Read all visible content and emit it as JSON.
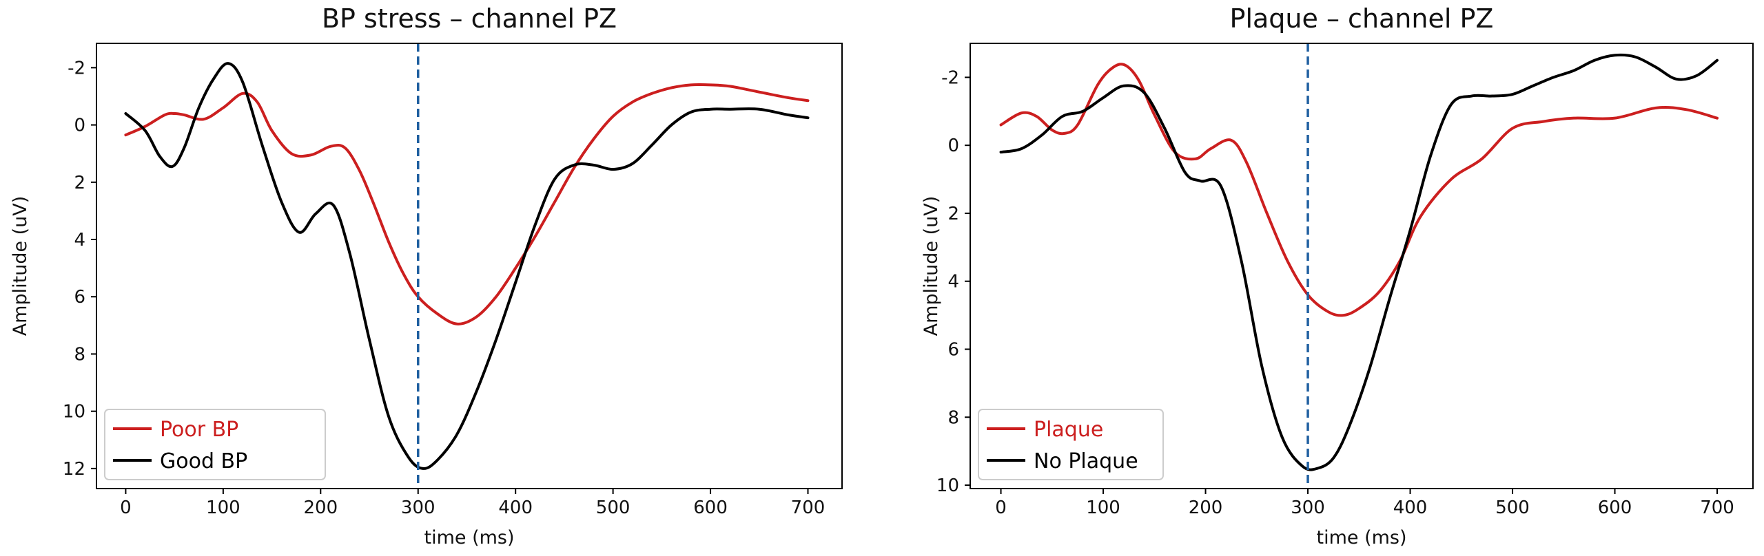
{
  "colors": {
    "red": "#cc1f1f",
    "black": "#000000",
    "marker": "#1f5fa0"
  },
  "chart_data": [
    {
      "type": "line",
      "title": "BP stress – channel PZ",
      "xlabel": "time (ms)",
      "ylabel": "Amplitude (uV)",
      "xlim": [
        -30,
        735
      ],
      "ylim": [
        12.7,
        -2.85
      ],
      "y_inverted": true,
      "xticks": [
        0,
        100,
        200,
        300,
        400,
        500,
        600,
        700
      ],
      "xtick_labels": [
        "0",
        "100",
        "200",
        "300",
        "400",
        "500",
        "600",
        "700"
      ],
      "yticks": [
        -2,
        0,
        2,
        4,
        6,
        8,
        10,
        12
      ],
      "ytick_labels": [
        "-2",
        "0",
        "2",
        "4",
        "6",
        "8",
        "10",
        "12"
      ],
      "vline_x": 300,
      "legend_position": "lower-left",
      "series": [
        {
          "name": "Poor BP",
          "color": "#cc1f1f",
          "x": [
            0,
            20,
            40,
            50,
            60,
            80,
            100,
            120,
            135,
            150,
            170,
            190,
            210,
            225,
            240,
            255,
            270,
            285,
            300,
            320,
            340,
            360,
            380,
            400,
            420,
            440,
            460,
            480,
            500,
            520,
            540,
            560,
            580,
            600,
            620,
            650,
            680,
            700
          ],
          "values": [
            0.35,
            0.05,
            -0.35,
            -0.4,
            -0.35,
            -0.2,
            -0.6,
            -1.1,
            -0.8,
            0.2,
            1.0,
            1.05,
            0.75,
            0.8,
            1.6,
            2.8,
            4.1,
            5.2,
            6.0,
            6.6,
            6.95,
            6.7,
            6.0,
            5.0,
            3.9,
            2.7,
            1.5,
            0.5,
            -0.3,
            -0.8,
            -1.1,
            -1.3,
            -1.4,
            -1.4,
            -1.35,
            -1.15,
            -0.95,
            -0.85
          ]
        },
        {
          "name": "Good BP",
          "color": "#000000",
          "x": [
            0,
            20,
            35,
            48,
            60,
            75,
            90,
            105,
            120,
            140,
            160,
            178,
            195,
            213,
            230,
            250,
            270,
            290,
            305,
            320,
            340,
            360,
            380,
            400,
            420,
            440,
            460,
            480,
            500,
            520,
            540,
            560,
            580,
            600,
            620,
            650,
            680,
            700
          ],
          "values": [
            -0.4,
            0.2,
            1.1,
            1.45,
            0.8,
            -0.6,
            -1.6,
            -2.15,
            -1.5,
            0.7,
            2.7,
            3.75,
            3.1,
            2.8,
            4.5,
            7.5,
            10.2,
            11.6,
            12.0,
            11.7,
            10.8,
            9.3,
            7.5,
            5.5,
            3.5,
            1.9,
            1.4,
            1.4,
            1.55,
            1.35,
            0.7,
            0.0,
            -0.45,
            -0.55,
            -0.55,
            -0.55,
            -0.35,
            -0.25
          ]
        }
      ]
    },
    {
      "type": "line",
      "title": "Plaque – channel PZ",
      "xlabel": "time (ms)",
      "ylabel": "Amplitude (uV)",
      "xlim": [
        -30,
        735
      ],
      "ylim": [
        10.1,
        -3.0
      ],
      "y_inverted": true,
      "xticks": [
        0,
        100,
        200,
        300,
        400,
        500,
        600,
        700
      ],
      "xtick_labels": [
        "0",
        "100",
        "200",
        "300",
        "400",
        "500",
        "600",
        "700"
      ],
      "yticks": [
        -2,
        0,
        2,
        4,
        6,
        8,
        10
      ],
      "ytick_labels": [
        "-2",
        "0",
        "2",
        "4",
        "6",
        "8",
        "10"
      ],
      "vline_x": 300,
      "legend_position": "lower-left",
      "series": [
        {
          "name": "Plaque",
          "color": "#cc1f1f",
          "x": [
            0,
            20,
            35,
            50,
            62,
            75,
            95,
            110,
            122,
            135,
            150,
            170,
            190,
            205,
            225,
            240,
            260,
            280,
            300,
            320,
            335,
            350,
            370,
            390,
            410,
            440,
            470,
            500,
            530,
            560,
            600,
            640,
            670,
            700
          ],
          "values": [
            -0.6,
            -0.95,
            -0.85,
            -0.45,
            -0.35,
            -0.6,
            -1.8,
            -2.3,
            -2.35,
            -1.9,
            -0.9,
            0.2,
            0.4,
            0.1,
            -0.15,
            0.5,
            2.0,
            3.4,
            4.4,
            4.9,
            5.0,
            4.8,
            4.3,
            3.4,
            2.1,
            1.0,
            0.4,
            -0.5,
            -0.7,
            -0.8,
            -0.8,
            -1.1,
            -1.05,
            -0.8
          ]
        },
        {
          "name": "No Plaque",
          "color": "#000000",
          "x": [
            0,
            20,
            40,
            60,
            80,
            100,
            120,
            140,
            160,
            180,
            195,
            215,
            235,
            255,
            275,
            295,
            310,
            325,
            340,
            360,
            380,
            400,
            420,
            440,
            460,
            480,
            500,
            520,
            540,
            560,
            580,
            600,
            620,
            640,
            660,
            680,
            700
          ],
          "values": [
            0.2,
            0.1,
            -0.3,
            -0.85,
            -1.0,
            -1.4,
            -1.75,
            -1.55,
            -0.5,
            0.8,
            1.05,
            1.2,
            3.4,
            6.5,
            8.6,
            9.45,
            9.5,
            9.2,
            8.3,
            6.6,
            4.5,
            2.5,
            0.3,
            -1.2,
            -1.45,
            -1.45,
            -1.5,
            -1.75,
            -2.0,
            -2.2,
            -2.5,
            -2.65,
            -2.6,
            -2.3,
            -1.95,
            -2.05,
            -2.5
          ]
        }
      ]
    }
  ]
}
